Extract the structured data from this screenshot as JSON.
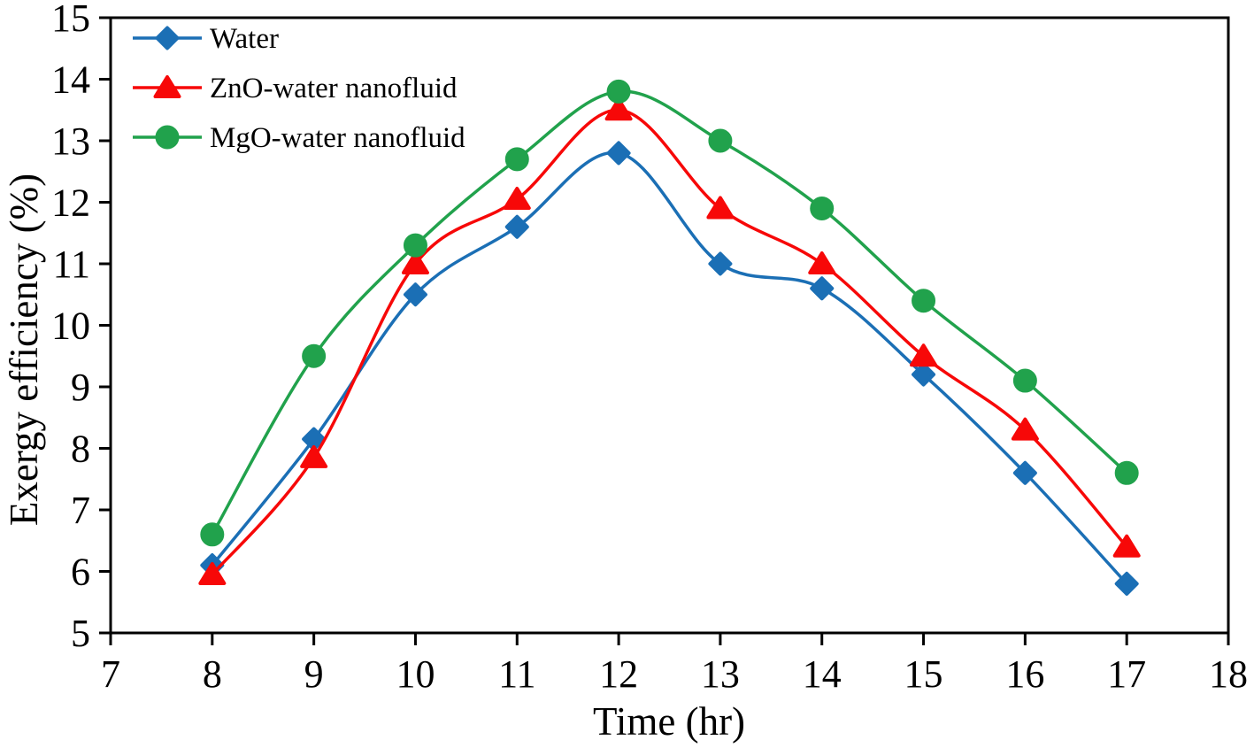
{
  "figure": {
    "background": "#ffffff",
    "axis_color": "#000000"
  },
  "chart_data": {
    "type": "line",
    "title": "",
    "xlabel": "Time (hr)",
    "ylabel": "Exergy efficiency (%)",
    "x": [
      8,
      9,
      10,
      11,
      12,
      13,
      14,
      15,
      16,
      17
    ],
    "series": [
      {
        "name": "Water",
        "marker": "diamond",
        "color": "#1B6FB5",
        "values": [
          6.1,
          8.15,
          10.5,
          11.6,
          12.8,
          11.0,
          10.6,
          9.2,
          7.6,
          5.8
        ]
      },
      {
        "name": "ZnO-water nanofluid",
        "marker": "triangle",
        "color": "#F70808",
        "values": [
          5.95,
          7.85,
          11.0,
          12.05,
          13.5,
          11.9,
          11.0,
          9.5,
          8.3,
          6.4
        ]
      },
      {
        "name": "MgO-water nanofluid",
        "marker": "circle",
        "color": "#21A24C",
        "values": [
          6.6,
          9.5,
          11.3,
          12.7,
          13.8,
          13.0,
          11.9,
          10.4,
          9.1,
          7.6
        ]
      }
    ],
    "xlim": [
      7,
      18
    ],
    "ylim": [
      5,
      15
    ],
    "xticks": [
      7,
      8,
      9,
      10,
      11,
      12,
      13,
      14,
      15,
      16,
      17,
      18
    ],
    "yticks": [
      5,
      6,
      7,
      8,
      9,
      10,
      11,
      12,
      13,
      14,
      15
    ],
    "grid": false,
    "legend_position": "top-left",
    "smooth_lines": true
  }
}
